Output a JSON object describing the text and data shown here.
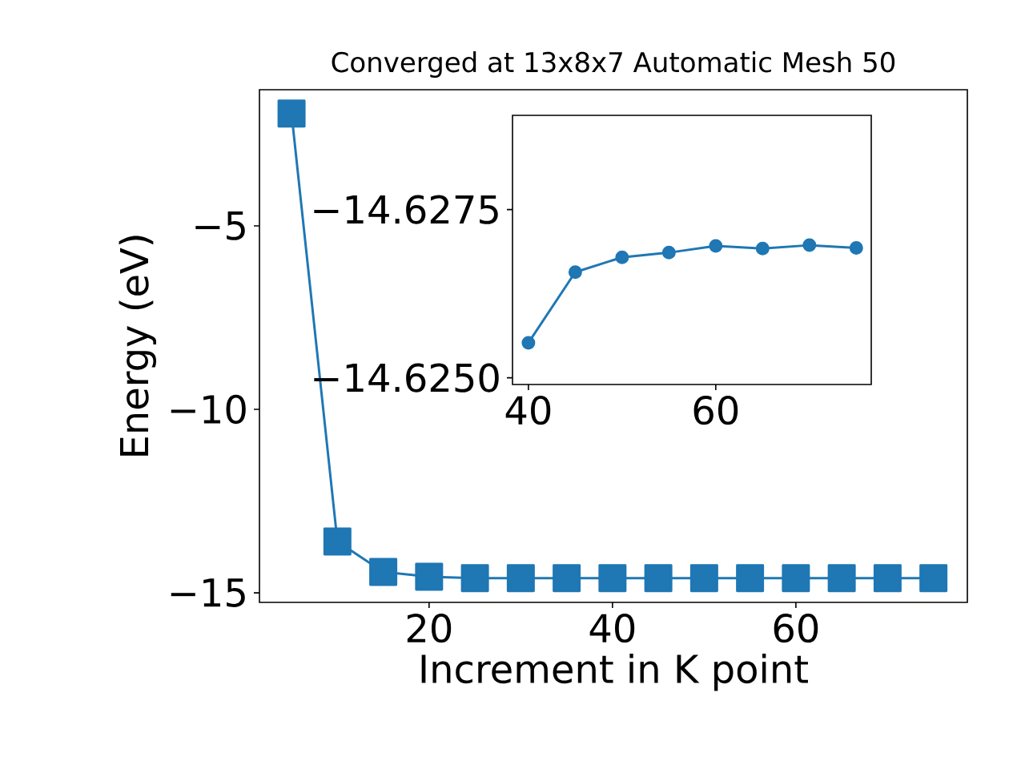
{
  "chart_data": [
    {
      "type": "line",
      "title": "Converged at 13x8x7 Automatic Mesh 50",
      "xlabel": "Increment in K point",
      "ylabel": "Energy (eV)",
      "color": "#1f77b4",
      "marker": "square",
      "line_style": "solid",
      "x": [
        5,
        10,
        15,
        20,
        25,
        30,
        35,
        40,
        45,
        50,
        55,
        60,
        65,
        70,
        75
      ],
      "values": [
        -1.94,
        -13.6,
        -14.43,
        -14.56,
        -14.6,
        -14.6,
        -14.6,
        -14.6,
        -14.6,
        -14.6,
        -14.6,
        -14.6,
        -14.6,
        -14.6,
        -14.6
      ],
      "xlim": [
        1.5,
        78.7
      ],
      "ylim": [
        -15.26,
        -1.29
      ],
      "xticks": [
        20,
        40,
        60
      ],
      "yticks": [
        {
          "value": -15,
          "label": "−15"
        },
        {
          "value": -10,
          "label": "−10"
        },
        {
          "value": -5,
          "label": "−5"
        }
      ]
    },
    {
      "type": "line",
      "color": "#1f77b4",
      "marker": "circle",
      "line_style": "solid",
      "x": [
        40,
        45,
        50,
        55,
        60,
        65,
        70,
        75
      ],
      "values": [
        -14.62552,
        -14.62657,
        -14.62679,
        -14.62686,
        -14.62696,
        -14.62692,
        -14.62697,
        -14.62693
      ],
      "xlim": [
        38.3,
        76.6
      ],
      "ylim": [
        -14.6249,
        -14.6289
      ],
      "xticks": [
        40,
        60
      ],
      "yticks": [
        {
          "value": -14.625,
          "label": "−14.6250"
        },
        {
          "value": -14.6275,
          "label": "−14.6275"
        }
      ]
    }
  ]
}
